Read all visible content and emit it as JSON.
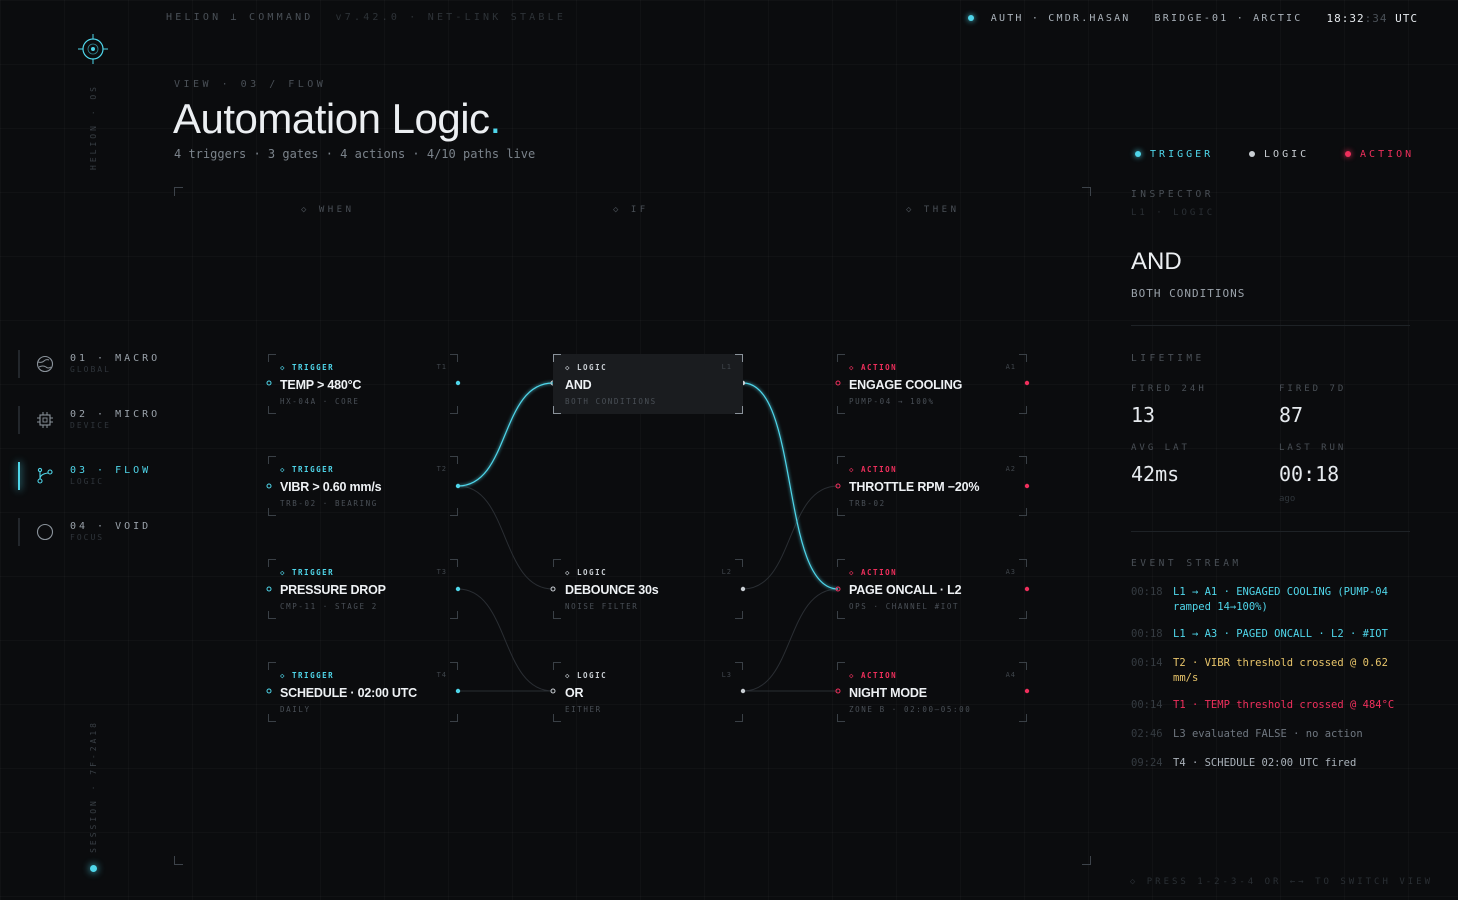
{
  "topbar": {
    "brand": "HELION ⊥ COMMAND",
    "version": "v7.42.0 · NET-LINK STABLE",
    "auth": "AUTH · CMDR.HASAN",
    "location": "BRIDGE-01 · ARCTIC",
    "clock_hm": "18:32",
    "clock_s": ":34",
    "clock_tz": "UTC"
  },
  "rail": {
    "os_label": "HELION · OS",
    "session_label": "SESSION · 7F-2A18"
  },
  "nav": [
    {
      "label": "01 · MACRO",
      "sub": "GLOBAL",
      "icon": "globe-icon"
    },
    {
      "label": "02 · MICRO",
      "sub": "DEVICE",
      "icon": "chip-icon"
    },
    {
      "label": "03 · FLOW",
      "sub": "LOGIC",
      "icon": "flow-icon",
      "active": true
    },
    {
      "label": "04 · VOID",
      "sub": "FOCUS",
      "icon": "circle-icon"
    }
  ],
  "header": {
    "crumb": "VIEW · 03 / FLOW",
    "title": "Automation Logic",
    "title_accent": ".",
    "subtitle": "4 triggers · 3 gates · 4 actions · 4/10 paths live"
  },
  "columns": {
    "when": "◇ WHEN",
    "if": "◇ IF",
    "then": "◇ THEN"
  },
  "nodes": {
    "t1": {
      "kind": "◇ TRIGGER",
      "id": "T1",
      "name": "TEMP > 480°C",
      "sub": "HX-04A · CORE"
    },
    "t2": {
      "kind": "◇ TRIGGER",
      "id": "T2",
      "name": "VIBR > 0.60 mm/s",
      "sub": "TRB-02 · BEARING"
    },
    "t3": {
      "kind": "◇ TRIGGER",
      "id": "T3",
      "name": "PRESSURE DROP",
      "sub": "CMP-11 · STAGE 2"
    },
    "t4": {
      "kind": "◇ TRIGGER",
      "id": "T4",
      "name": "SCHEDULE · 02:00 UTC",
      "sub": "DAILY"
    },
    "l1": {
      "kind": "◇ LOGIC",
      "id": "L1",
      "name": "AND",
      "sub": "BOTH CONDITIONS"
    },
    "l2": {
      "kind": "◇ LOGIC",
      "id": "L2",
      "name": "DEBOUNCE 30s",
      "sub": "NOISE FILTER"
    },
    "l3": {
      "kind": "◇ LOGIC",
      "id": "L3",
      "name": "OR",
      "sub": "EITHER"
    },
    "a1": {
      "kind": "◇ ACTION",
      "id": "A1",
      "name": "ENGAGE COOLING",
      "sub": "PUMP-04 → 100%"
    },
    "a2": {
      "kind": "◇ ACTION",
      "id": "A2",
      "name": "THROTTLE RPM −20%",
      "sub": "TRB-02"
    },
    "a3": {
      "kind": "◇ ACTION",
      "id": "A3",
      "name": "PAGE ONCALL · L2",
      "sub": "OPS · CHANNEL #IOT"
    },
    "a4": {
      "kind": "◇ ACTION",
      "id": "A4",
      "name": "NIGHT MODE",
      "sub": "ZONE B · 02:00–05:00"
    }
  },
  "legend": {
    "trigger": "TRIGGER",
    "logic": "LOGIC",
    "action": "ACTION"
  },
  "inspector": {
    "heading": "INSPECTOR",
    "selection": "L1 · LOGIC",
    "name": "AND",
    "desc": "BOTH CONDITIONS",
    "lifetime": "LIFETIME",
    "fired24_label": "FIRED 24H",
    "fired24": "13",
    "fired7_label": "FIRED 7D",
    "fired7": "87",
    "lat_label": "AVG LAT",
    "lat": "42ms",
    "last_label": "LAST RUN",
    "last": "00:18",
    "last_unit": "ago"
  },
  "events": {
    "heading": "EVENT STREAM",
    "items": [
      {
        "t": "00:18",
        "m": "L1 → A1 · ENGAGED COOLING (PUMP-04 ramped 14→100%)"
      },
      {
        "t": "00:18",
        "m": "L1 → A3 · PAGED ONCALL · L2 · #IOT"
      },
      {
        "t": "00:14",
        "m": "T2 · VIBR threshold crossed @ 0.62 mm/s"
      },
      {
        "t": "00:14",
        "m": "T1 · TEMP threshold crossed @ 484°C"
      },
      {
        "t": "02:46",
        "m": "L3 evaluated FALSE · no action"
      },
      {
        "t": "09:24",
        "m": "T4 · SCHEDULE 02:00 UTC fired"
      }
    ]
  },
  "footer": "◇ PRESS 1-2-3-4 OR ←→ TO SWITCH VIEW",
  "colors": {
    "trigger": "#4fd6ea",
    "logic": "#c9ced3",
    "action": "#ef2f5c",
    "warn": "#e8c56a"
  }
}
